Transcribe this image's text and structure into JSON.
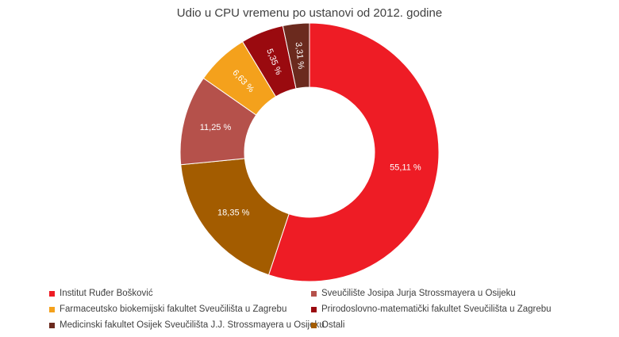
{
  "chart_data": {
    "type": "pie",
    "variant": "donut",
    "title": "Udio u CPU vremenu po ustanovi od 2012. godine",
    "legend_position": "bottom",
    "series": [
      {
        "name": "Institut Ruđer Bošković",
        "value": 55.11,
        "label": "55,11 %",
        "color": "#ee1c25"
      },
      {
        "name": "Ostali",
        "value": 18.35,
        "label": "18,35 %",
        "color": "#a35c00"
      },
      {
        "name": "Sveučilište Josipa Jurja Strossmayera u Osijeku",
        "value": 11.25,
        "label": "11,25 %",
        "color": "#b5514b"
      },
      {
        "name": "Farmaceutsko biokemijski fakultet Sveučilišta u Zagrebu",
        "value": 6.63,
        "label": "6,63 %",
        "color": "#f4a11c"
      },
      {
        "name": "Prirodoslovno-matematički fakultet Sveučilišta u Zagrebu",
        "value": 5.35,
        "label": "5,35 %",
        "color": "#9a0a0f"
      },
      {
        "name": "Medicinski fakultet Osijek Sveučilišta J.J. Strossmayera u Osijeku",
        "value": 3.31,
        "label": "3,31 %",
        "color": "#6b2a1e"
      }
    ],
    "legend_order": [
      "Institut Ruđer Bošković",
      "Sveučilište Josipa Jurja Strossmayera u Osijeku",
      "Farmaceutsko biokemijski fakultet Sveučilišta u Zagrebu",
      "Prirodoslovno-matematički fakultet Sveučilišta u Zagrebu",
      "Medicinski fakultet Osijek Sveučilišta J.J. Strossmayera u Osijeku",
      "Ostali"
    ]
  }
}
